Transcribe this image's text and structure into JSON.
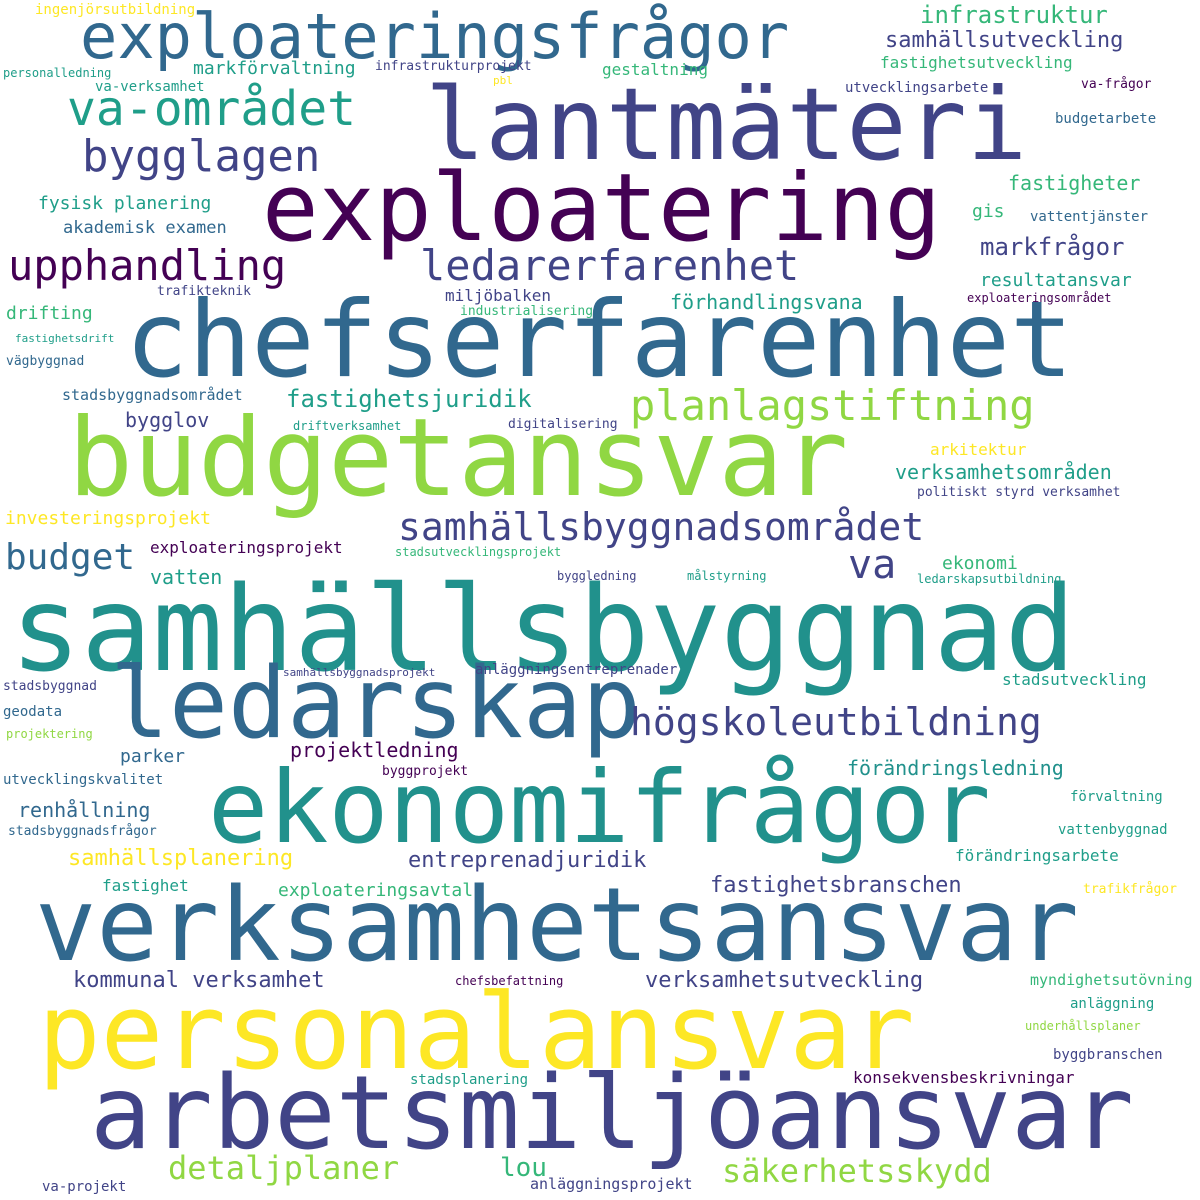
{
  "palette": {
    "dark_purple": "#440154",
    "indigo": "#3b528b",
    "slate_blue": "#414487",
    "steel_blue": "#31688e",
    "teal": "#21918c",
    "sea_green": "#1f9e89",
    "green": "#35b779",
    "lime": "#90d743",
    "yellow": "#fde725"
  },
  "words": [
    "exploateringsfrågor",
    "lantmäteri",
    "exploatering",
    "chefserfarenhet",
    "budgetansvar",
    "samhällsbyggnad",
    "ledarskap",
    "ekonomifrågor",
    "verksamhetsansvar",
    "personalansvar",
    "arbetsmiljöansvar",
    "va-området",
    "bygglagen",
    "upphandling",
    "ledarerfarenhet",
    "planlagstiftning",
    "samhällsbyggnadsområdet",
    "högskoleutbildning",
    "va",
    "budget",
    "infrastruktur",
    "samhällsutveckling",
    "fastighetsutveckling",
    "markförvaltning",
    "ingenjörsutbildning",
    "personalledning",
    "infrastrukturprojekt",
    "pbl",
    "gestaltning",
    "va-verksamhet",
    "utvecklingsarbete",
    "va-frågor",
    "budgetarbete",
    "fastigheter",
    "fysisk planering",
    "gis",
    "vattentjänster",
    "akademisk examen",
    "markfrågor",
    "resultatansvar",
    "trafikteknik",
    "miljöbalken",
    "exploateringsområdet",
    "förhandlingsvana",
    "drifting",
    "industrialisering",
    "fastighetsdrift",
    "vägbyggnad",
    "fastighetsjuridik",
    "stadsbyggnadsområdet",
    "bygglov",
    "driftverksamhet",
    "digitalisering",
    "arkitektur",
    "verksamhetsområden",
    "politiskt styrd verksamhet",
    "investeringsprojekt",
    "exploateringsprojekt",
    "stadsutvecklingsprojekt",
    "ekonomi",
    "vatten",
    "byggledning",
    "målstyrning",
    "ledarskapsutbildning",
    "samhällsbyggnadsprojekt",
    "anläggningsentreprenader",
    "stadsbyggnad",
    "stadsutveckling",
    "geodata",
    "projektering",
    "parker",
    "projektledning",
    "utvecklingskvalitet",
    "byggprojekt",
    "förändringsledning",
    "renhållning",
    "förvaltning",
    "stadsbyggnadsfrågor",
    "vattenbyggnad",
    "samhällsplanering",
    "entreprenadjuridik",
    "förändringsarbete",
    "fastighet",
    "fastighetsbranschen",
    "exploateringsavtal",
    "trafikfrågor",
    "kommunal verksamhet",
    "verksamhetsutveckling",
    "chefsbefattning",
    "myndighetsutövning",
    "anläggning",
    "underhållsplaner",
    "byggbranschen",
    "stadsplanering",
    "konsekvensbeskrivningar",
    "detaljplaner",
    "lou",
    "säkerhetsskydd",
    "va-projekt",
    "anläggningsprojekt"
  ]
}
